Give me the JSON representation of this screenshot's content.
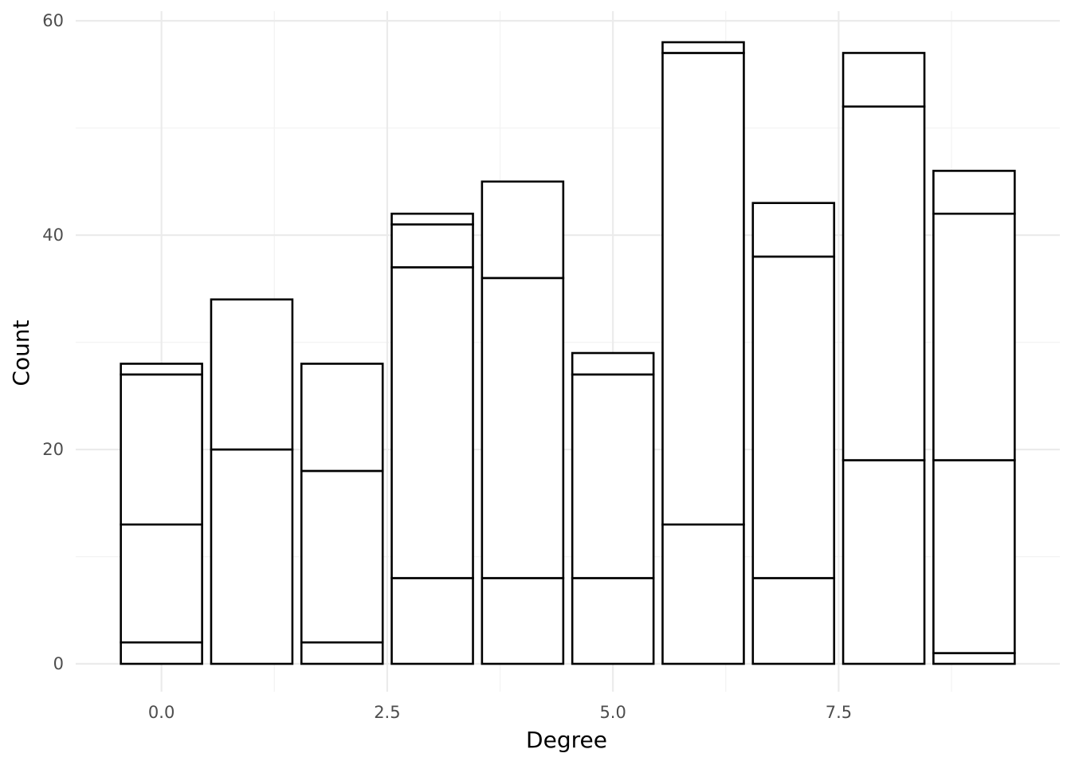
{
  "chart_data": {
    "type": "bar",
    "stacked": true,
    "title": "",
    "xlabel": "Degree",
    "ylabel": "Count",
    "x": [
      0,
      1,
      2,
      3,
      4,
      5,
      6,
      7,
      8,
      9
    ],
    "stack_boundaries": [
      [
        2,
        13,
        27,
        28
      ],
      [
        20,
        34
      ],
      [
        2,
        18,
        28
      ],
      [
        8,
        37,
        41,
        42
      ],
      [
        8,
        36,
        45
      ],
      [
        8,
        27,
        29
      ],
      [
        13,
        57,
        58
      ],
      [
        8,
        38,
        43
      ],
      [
        19,
        52,
        57
      ],
      [
        1,
        19,
        42,
        46
      ]
    ],
    "totals": [
      28,
      34,
      28,
      42,
      45,
      29,
      58,
      43,
      57,
      46
    ],
    "xlim": [
      -0.95,
      9.95
    ],
    "ylim": [
      -2.6,
      60.9
    ],
    "x_ticks": [
      0.0,
      2.5,
      5.0,
      7.5
    ],
    "x_tick_labels": [
      "0.0",
      "2.5",
      "5.0",
      "7.5"
    ],
    "y_ticks": [
      0,
      20,
      40,
      60
    ],
    "y_tick_labels": [
      "0",
      "20",
      "40",
      "60"
    ],
    "grid": true,
    "bar_fill": "#ffffff",
    "bar_outline": "#000000"
  }
}
